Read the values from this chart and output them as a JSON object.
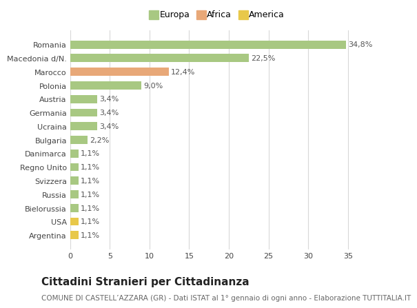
{
  "categories": [
    "Argentina",
    "USA",
    "Bielorussia",
    "Russia",
    "Svizzera",
    "Regno Unito",
    "Danimarca",
    "Bulgaria",
    "Ucraina",
    "Germania",
    "Austria",
    "Polonia",
    "Marocco",
    "Macedonia d/N.",
    "Romania"
  ],
  "values": [
    1.1,
    1.1,
    1.1,
    1.1,
    1.1,
    1.1,
    1.1,
    2.2,
    3.4,
    3.4,
    3.4,
    9.0,
    12.4,
    22.5,
    34.8
  ],
  "labels": [
    "1,1%",
    "1,1%",
    "1,1%",
    "1,1%",
    "1,1%",
    "1,1%",
    "1,1%",
    "2,2%",
    "3,4%",
    "3,4%",
    "3,4%",
    "9,0%",
    "12,4%",
    "22,5%",
    "34,8%"
  ],
  "colors": [
    "#e8c84a",
    "#e8c84a",
    "#a8c882",
    "#a8c882",
    "#a8c882",
    "#a8c882",
    "#a8c882",
    "#a8c882",
    "#a8c882",
    "#a8c882",
    "#a8c882",
    "#a8c882",
    "#e8a878",
    "#a8c882",
    "#a8c882"
  ],
  "legend_labels": [
    "Europa",
    "Africa",
    "America"
  ],
  "legend_colors": [
    "#a8c882",
    "#e8a878",
    "#e8c84a"
  ],
  "xlim": [
    0,
    37
  ],
  "xticks": [
    0,
    5,
    10,
    15,
    20,
    25,
    30,
    35
  ],
  "title": "Cittadini Stranieri per Cittadinanza",
  "subtitle": "COMUNE DI CASTELL’AZZARA (GR) - Dati ISTAT al 1° gennaio di ogni anno - Elaborazione TUTTITALIA.IT",
  "bg_color": "#ffffff",
  "grid_color": "#d8d8d8",
  "bar_height": 0.6,
  "title_fontsize": 11,
  "subtitle_fontsize": 7.5,
  "label_fontsize": 8,
  "tick_fontsize": 8,
  "legend_fontsize": 9
}
